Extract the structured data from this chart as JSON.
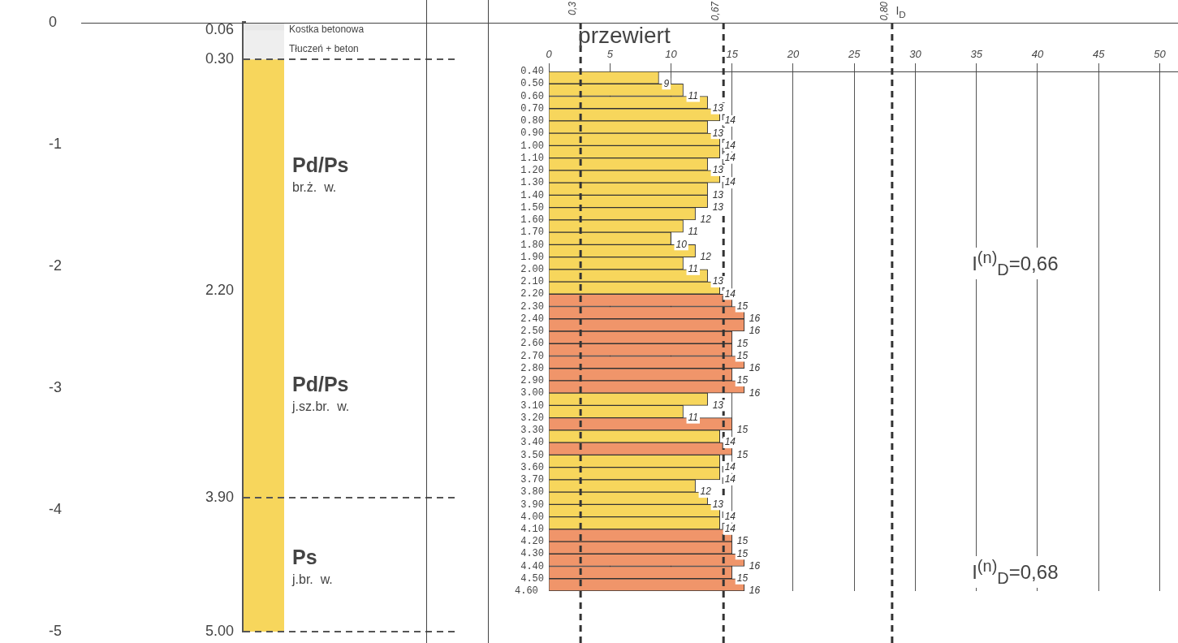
{
  "chart_data": [
    {
      "type": "bar",
      "stacked": true,
      "categories": [
        null
      ],
      "series": [
        {
          "color": "#e8e8e8",
          "values": [
            -0.06
          ]
        },
        {
          "color": "#eeeeee",
          "values": [
            -0.24
          ]
        },
        {
          "color": "#f7d65c",
          "values": [
            -1.9
          ]
        },
        {
          "color": "#f7d65c",
          "values": [
            -1.7
          ]
        },
        {
          "color": "#f7d65c",
          "values": [
            -1.1
          ]
        }
      ],
      "ylim": [
        -5,
        0
      ],
      "yticks": [
        0,
        -1,
        -2,
        -3,
        -4,
        -5
      ],
      "tick_labels": "y",
      "ref_lines": [
        {
          "axis": "y",
          "value": -0.3,
          "color": "#555555",
          "line_style": "dashed"
        },
        {
          "axis": "y",
          "value": -3.9,
          "color": "#555555",
          "line_style": "dashed"
        },
        {
          "axis": "y",
          "value": -5,
          "color": "#555555",
          "line_style": "dashed"
        }
      ],
      "annotations": [
        "0.06",
        "0.30",
        "2.20",
        "3.90",
        "5.00",
        "Kostka betonowa",
        "Tłuczeń + beton",
        "Pd/Ps",
        "br.ż.  w.",
        "Pd/Ps",
        "j.sz.br.  w.",
        "Ps",
        "j.br.  w."
      ]
    },
    {
      "type": "bar",
      "orientation": "horizontal",
      "categories": [
        "0.40",
        "0.50",
        "0.60",
        "0.70",
        "0.80",
        "0.90",
        "1.00",
        "1.10",
        "1.20",
        "1.30",
        "1.40",
        "1.50",
        "1.60",
        "1.70",
        "1.80",
        "1.90",
        "2.00",
        "2.10",
        "2.20",
        "2.30",
        "2.40",
        "2.50",
        "2.60",
        "2.70",
        "2.80",
        "2.90",
        "3.00",
        "3.10",
        "3.20",
        "3.30",
        "3.40",
        "3.50",
        "3.60",
        "3.70",
        "3.80",
        "3.90",
        "4.00",
        "4.10",
        "4.20",
        "4.30",
        "4.40",
        "4.50"
      ],
      "values": [
        9,
        11,
        13,
        14,
        13,
        14,
        14,
        13,
        14,
        13,
        13,
        12,
        11,
        10,
        12,
        11,
        13,
        14,
        15,
        16,
        16,
        15,
        15,
        16,
        15,
        16,
        13,
        11,
        15,
        14,
        15,
        14,
        14,
        12,
        13,
        14,
        14,
        15,
        15,
        16,
        15,
        16
      ],
      "colors": [
        "#f7d65c",
        "#f7d65c",
        "#f7d65c",
        "#f7d65c",
        "#f7d65c",
        "#f7d65c",
        "#f7d65c",
        "#f7d65c",
        "#f7d65c",
        "#f7d65c",
        "#f7d65c",
        "#f7d65c",
        "#f7d65c",
        "#f7d65c",
        "#f7d65c",
        "#f7d65c",
        "#f7d65c",
        "#f7d65c",
        "#f0956a",
        "#f0956a",
        "#f0956a",
        "#f0956a",
        "#f0956a",
        "#f0956a",
        "#f0956a",
        "#f0956a",
        "#f7d65c",
        "#f7d65c",
        "#f0956a",
        "#f7d65c",
        "#f0956a",
        "#f7d65c",
        "#f7d65c",
        "#f7d65c",
        "#f7d65c",
        "#f7d65c",
        "#f7d65c",
        "#f0956a",
        "#f0956a",
        "#f0956a",
        "#f0956a",
        "#f0956a"
      ],
      "data_labels": true,
      "xlim": [
        0,
        51.5
      ],
      "xticks": [
        0,
        5,
        10,
        15,
        20,
        25,
        30,
        35,
        40,
        45,
        50
      ],
      "grid": "x",
      "ref_lines": [
        {
          "axis": "x",
          "value": 2.6,
          "color": "#333333",
          "line_style": "dashed"
        },
        {
          "axis": "x",
          "value": 14.3,
          "color": "#333333",
          "line_style": "dashed"
        },
        {
          "axis": "x",
          "value": 28.1,
          "color": "#333333",
          "line_style": "dashed"
        }
      ],
      "annotations": [
        "0,3",
        "0,67",
        "0,80",
        "przewiert",
        "4.60",
        "I$_{D}$",
        "I$^{(n)}$$_{D}$=0,66",
        "I$^{(n)}$$_{D}$=0,68"
      ]
    }
  ]
}
